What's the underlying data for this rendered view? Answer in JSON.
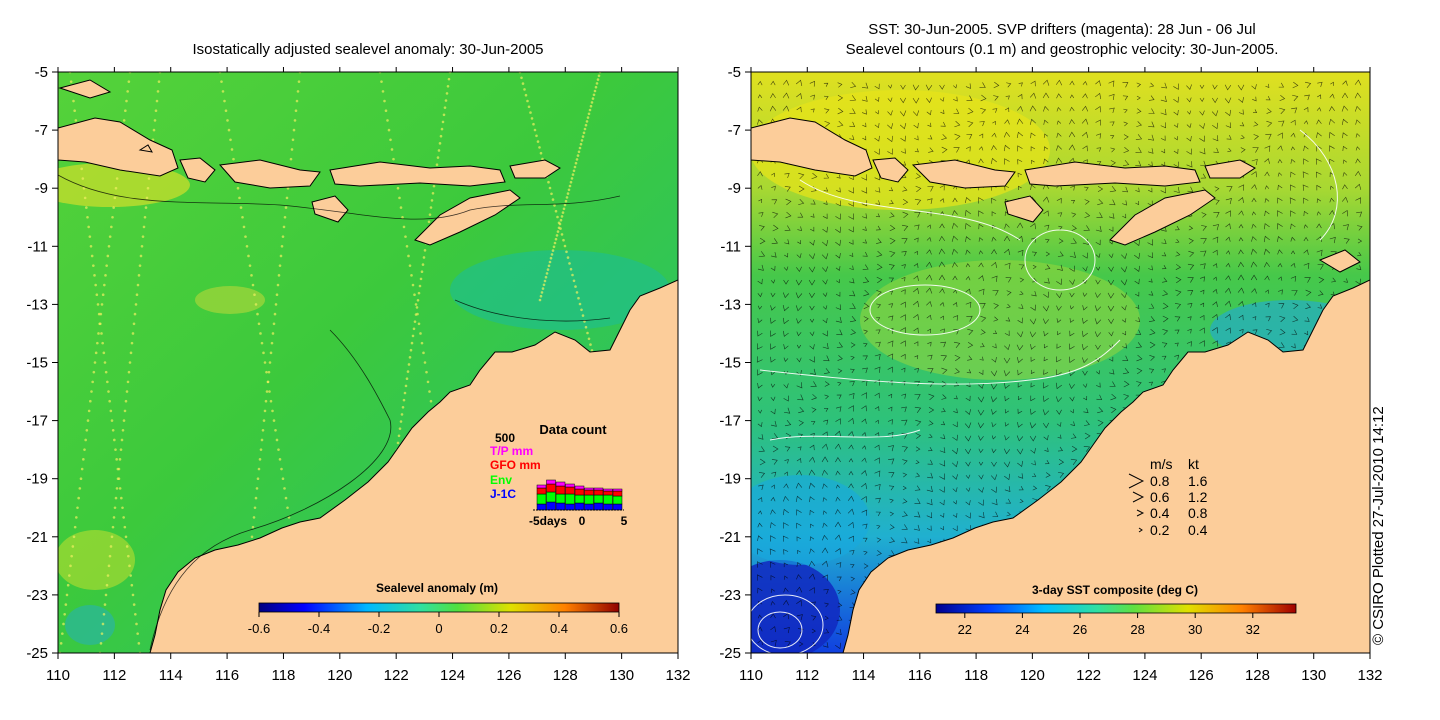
{
  "left_map": {
    "title": "Isostatically adjusted sealevel anomaly: 30-Jun-2005",
    "colorbar": {
      "label": "Sealevel anomaly (m)",
      "ticks": [
        "-0.6",
        "-0.4",
        "-0.2",
        "0",
        "0.2",
        "0.4",
        "0.6"
      ],
      "range": [
        -0.6,
        0.6
      ]
    },
    "inset": {
      "title": "Data count",
      "max_label": "500",
      "legend": [
        {
          "name": "T/P mm",
          "color": "#ff00ff"
        },
        {
          "name": "GFO mm",
          "color": "#ff0000"
        },
        {
          "name": "Env",
          "color": "#00ff00"
        },
        {
          "name": "J-1C",
          "color": "#0000ff"
        }
      ],
      "x_labels": [
        "-5days",
        "0",
        "5"
      ]
    }
  },
  "right_map": {
    "title_line1": "SST: 30-Jun-2005. SVP drifters (magenta): 28 Jun - 06 Jul",
    "title_line2": "Sealevel contours (0.1 m) and geostrophic velocity: 30-Jun-2005.",
    "colorbar": {
      "label": "3-day SST composite (deg C)",
      "ticks": [
        "22",
        "24",
        "26",
        "28",
        "30",
        "32"
      ],
      "range": [
        21,
        33.5
      ]
    },
    "velocity_legend": {
      "header_ms": "m/s",
      "header_kt": "kt",
      "rows": [
        {
          "ms": "0.8",
          "kt": "1.6"
        },
        {
          "ms": "0.6",
          "kt": "1.2"
        },
        {
          "ms": "0.4",
          "kt": "0.8"
        },
        {
          "ms": "0.2",
          "kt": "0.4"
        }
      ]
    }
  },
  "axes": {
    "x_ticks": [
      "110",
      "112",
      "114",
      "116",
      "118",
      "120",
      "122",
      "124",
      "126",
      "128",
      "130",
      "132"
    ],
    "y_ticks": [
      "-5",
      "-7",
      "-9",
      "-11",
      "-13",
      "-15",
      "-17",
      "-19",
      "-21",
      "-23",
      "-25"
    ],
    "lon_range": [
      110,
      132
    ],
    "lat_range": [
      -25,
      -5
    ]
  },
  "colors": {
    "land": "#fccd9a",
    "ocean_green": "#3dcd3a",
    "coast": "#000000"
  },
  "copyright": "© CSIRO Plotted 27-Jul-2010 14:12"
}
